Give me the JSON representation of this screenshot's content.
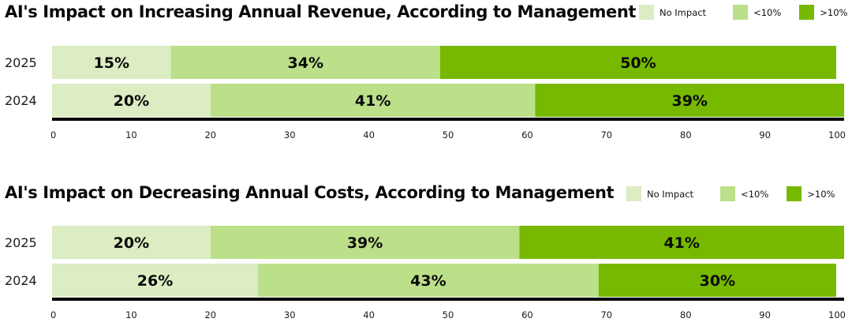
{
  "colors": {
    "no_impact": "#dcecc3",
    "lt10": "#bcdf8a",
    "gt10": "#76b900",
    "axis": "#000000"
  },
  "chart_data": [
    {
      "type": "bar",
      "orientation": "horizontal",
      "stacked": true,
      "title": "AI's Impact on Increasing Annual Revenue, According to Management",
      "categories": [
        "2025",
        "2024"
      ],
      "series": [
        {
          "name": "No Impact",
          "color_key": "no_impact",
          "values": [
            15,
            20
          ],
          "labels": [
            "15%",
            "20%"
          ]
        },
        {
          "name": "<10%",
          "color_key": "lt10",
          "values": [
            34,
            41
          ],
          "labels": [
            "34%",
            "41%"
          ]
        },
        {
          "name": ">10%",
          "color_key": "gt10",
          "values": [
            50,
            39
          ],
          "labels": [
            "50%",
            "39%"
          ]
        }
      ],
      "xlim": [
        0,
        100
      ],
      "xticks": [
        0,
        10,
        20,
        30,
        40,
        50,
        60,
        70,
        80,
        90,
        100
      ],
      "xlabel": "",
      "ylabel": "",
      "grid": false,
      "legend": "top-right"
    },
    {
      "type": "bar",
      "orientation": "horizontal",
      "stacked": true,
      "title": "AI's Impact on Decreasing Annual Costs, According to Management",
      "categories": [
        "2025",
        "2024"
      ],
      "series": [
        {
          "name": "No Impact",
          "color_key": "no_impact",
          "values": [
            20,
            26
          ],
          "labels": [
            "20%",
            "26%"
          ]
        },
        {
          "name": "<10%",
          "color_key": "lt10",
          "values": [
            39,
            43
          ],
          "labels": [
            "39%",
            "43%"
          ]
        },
        {
          "name": ">10%",
          "color_key": "gt10",
          "values": [
            41,
            30
          ],
          "labels": [
            "41%",
            "30%"
          ]
        }
      ],
      "xlim": [
        0,
        100
      ],
      "xticks": [
        0,
        10,
        20,
        30,
        40,
        50,
        60,
        70,
        80,
        90,
        100
      ],
      "xlabel": "",
      "ylabel": "",
      "grid": false,
      "legend": "top-right"
    }
  ]
}
